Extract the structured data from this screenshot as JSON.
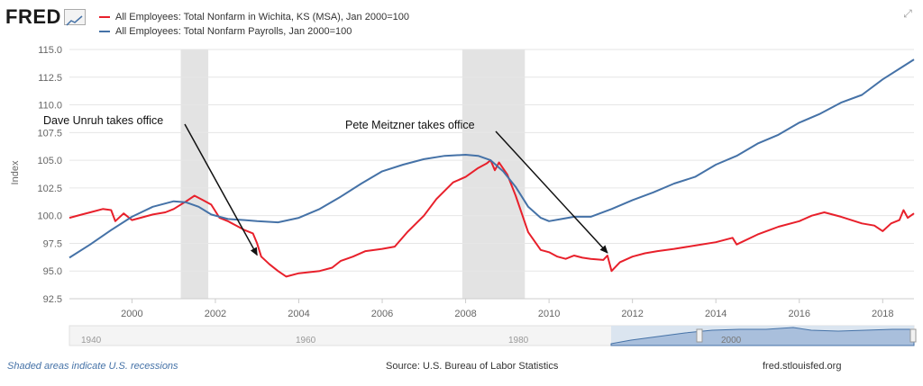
{
  "brand": {
    "logo_text": "FRED"
  },
  "legend": [
    {
      "label": "All Employees: Total Nonfarm in Wichita, KS (MSA), Jan 2000=100",
      "color": "#e8202b"
    },
    {
      "label": "All Employees: Total Nonfarm Payrolls, Jan 2000=100",
      "color": "#4572a7"
    }
  ],
  "footer": {
    "recessions_note": "Shaded areas indicate U.S. recessions",
    "source": "Source: U.S. Bureau of Labor Statistics",
    "site": "fred.stlouisfed.org"
  },
  "navigator": {
    "ticks": [
      "1940",
      "1960",
      "1980",
      "2000"
    ]
  },
  "icons": {
    "expand": "expand-icon"
  },
  "chart_data": {
    "type": "line",
    "ylabel": "Index",
    "ylim": [
      92.5,
      115.0
    ],
    "xlim": [
      1998.5,
      2018.75
    ],
    "y_ticks": [
      92.5,
      95.0,
      97.5,
      100.0,
      102.5,
      105.0,
      107.5,
      110.0,
      112.5,
      115.0
    ],
    "y_tick_labels": [
      "92.5",
      "95.0",
      "97.5",
      "100.0",
      "102.5",
      "105.0",
      "107.5",
      "110.0",
      "112.5",
      "115.0"
    ],
    "x_ticks": [
      2000,
      2002,
      2004,
      2006,
      2008,
      2010,
      2012,
      2014,
      2016,
      2018
    ],
    "x_tick_labels": [
      "2000",
      "2002",
      "2004",
      "2006",
      "2008",
      "2010",
      "2012",
      "2014",
      "2016",
      "2018"
    ],
    "recessions": [
      [
        2001.17,
        2001.83
      ],
      [
        2007.92,
        2009.42
      ]
    ],
    "series": [
      {
        "name": "All Employees: Total Nonfarm in Wichita, KS (MSA), Jan 2000=100",
        "color": "#e8202b",
        "x": [
          1998.5,
          1998.8,
          1999.0,
          1999.3,
          1999.5,
          1999.6,
          1999.8,
          2000.0,
          2000.3,
          2000.5,
          2000.8,
          2001.0,
          2001.3,
          2001.5,
          2001.7,
          2001.9,
          2002.1,
          2002.3,
          2002.5,
          2002.7,
          2002.9,
          2003.0,
          2003.1,
          2003.3,
          2003.5,
          2003.7,
          2004.0,
          2004.5,
          2004.8,
          2005.0,
          2005.3,
          2005.6,
          2006.0,
          2006.3,
          2006.6,
          2007.0,
          2007.3,
          2007.7,
          2008.0,
          2008.3,
          2008.5,
          2008.6,
          2008.7,
          2008.8,
          2009.0,
          2009.2,
          2009.5,
          2009.8,
          2010.0,
          2010.2,
          2010.4,
          2010.6,
          2010.8,
          2011.0,
          2011.3,
          2011.4,
          2011.5,
          2011.7,
          2012.0,
          2012.3,
          2012.6,
          2013.0,
          2013.5,
          2014.0,
          2014.4,
          2014.5,
          2015.0,
          2015.5,
          2016.0,
          2016.3,
          2016.6,
          2017.0,
          2017.5,
          2017.8,
          2018.0,
          2018.2,
          2018.4,
          2018.5,
          2018.6,
          2018.75
        ],
        "y": [
          99.8,
          100.1,
          100.3,
          100.6,
          100.5,
          99.5,
          100.2,
          99.6,
          99.9,
          100.1,
          100.3,
          100.6,
          101.3,
          101.8,
          101.4,
          101.0,
          99.8,
          99.5,
          99.1,
          98.7,
          98.4,
          97.5,
          96.3,
          95.6,
          95.0,
          94.5,
          94.8,
          95.0,
          95.3,
          95.9,
          96.3,
          96.8,
          97.0,
          97.2,
          98.5,
          100.0,
          101.5,
          103.0,
          103.5,
          104.3,
          104.7,
          105.0,
          104.1,
          104.8,
          103.7,
          101.8,
          98.5,
          96.9,
          96.7,
          96.3,
          96.1,
          96.4,
          96.2,
          96.1,
          96.0,
          96.4,
          95.0,
          95.8,
          96.3,
          96.6,
          96.8,
          97.0,
          97.3,
          97.6,
          98.0,
          97.4,
          98.3,
          99.0,
          99.5,
          100.0,
          100.3,
          99.9,
          99.3,
          99.1,
          98.6,
          99.3,
          99.6,
          100.5,
          99.8,
          100.2
        ]
      },
      {
        "name": "All Employees: Total Nonfarm Payrolls, Jan 2000=100",
        "color": "#4572a7",
        "x": [
          1998.5,
          1999.0,
          1999.5,
          2000.0,
          2000.5,
          2001.0,
          2001.3,
          2001.6,
          2001.9,
          2002.3,
          2002.7,
          2003.0,
          2003.5,
          2004.0,
          2004.5,
          2005.0,
          2005.5,
          2006.0,
          2006.5,
          2007.0,
          2007.5,
          2008.0,
          2008.3,
          2008.6,
          2008.9,
          2009.2,
          2009.5,
          2009.8,
          2010.0,
          2010.3,
          2010.6,
          2011.0,
          2011.5,
          2012.0,
          2012.5,
          2013.0,
          2013.5,
          2014.0,
          2014.5,
          2015.0,
          2015.5,
          2016.0,
          2016.5,
          2017.0,
          2017.5,
          2018.0,
          2018.5,
          2018.75
        ],
        "y": [
          96.2,
          97.4,
          98.7,
          99.9,
          100.8,
          101.3,
          101.2,
          100.8,
          100.1,
          99.7,
          99.6,
          99.5,
          99.4,
          99.8,
          100.6,
          101.7,
          102.9,
          104.0,
          104.6,
          105.1,
          105.4,
          105.5,
          105.4,
          105.0,
          104.0,
          102.6,
          100.8,
          99.8,
          99.5,
          99.7,
          99.9,
          99.9,
          100.6,
          101.4,
          102.1,
          102.9,
          103.5,
          104.6,
          105.4,
          106.5,
          107.3,
          108.4,
          109.2,
          110.2,
          110.9,
          112.3,
          113.5,
          114.1
        ]
      }
    ],
    "annotations": [
      {
        "text": "Dave Unruh takes office",
        "x": 2003.0,
        "y": 96.2
      },
      {
        "text": "Pete Meitzner takes office",
        "x": 2011.4,
        "y": 96.4
      }
    ]
  }
}
